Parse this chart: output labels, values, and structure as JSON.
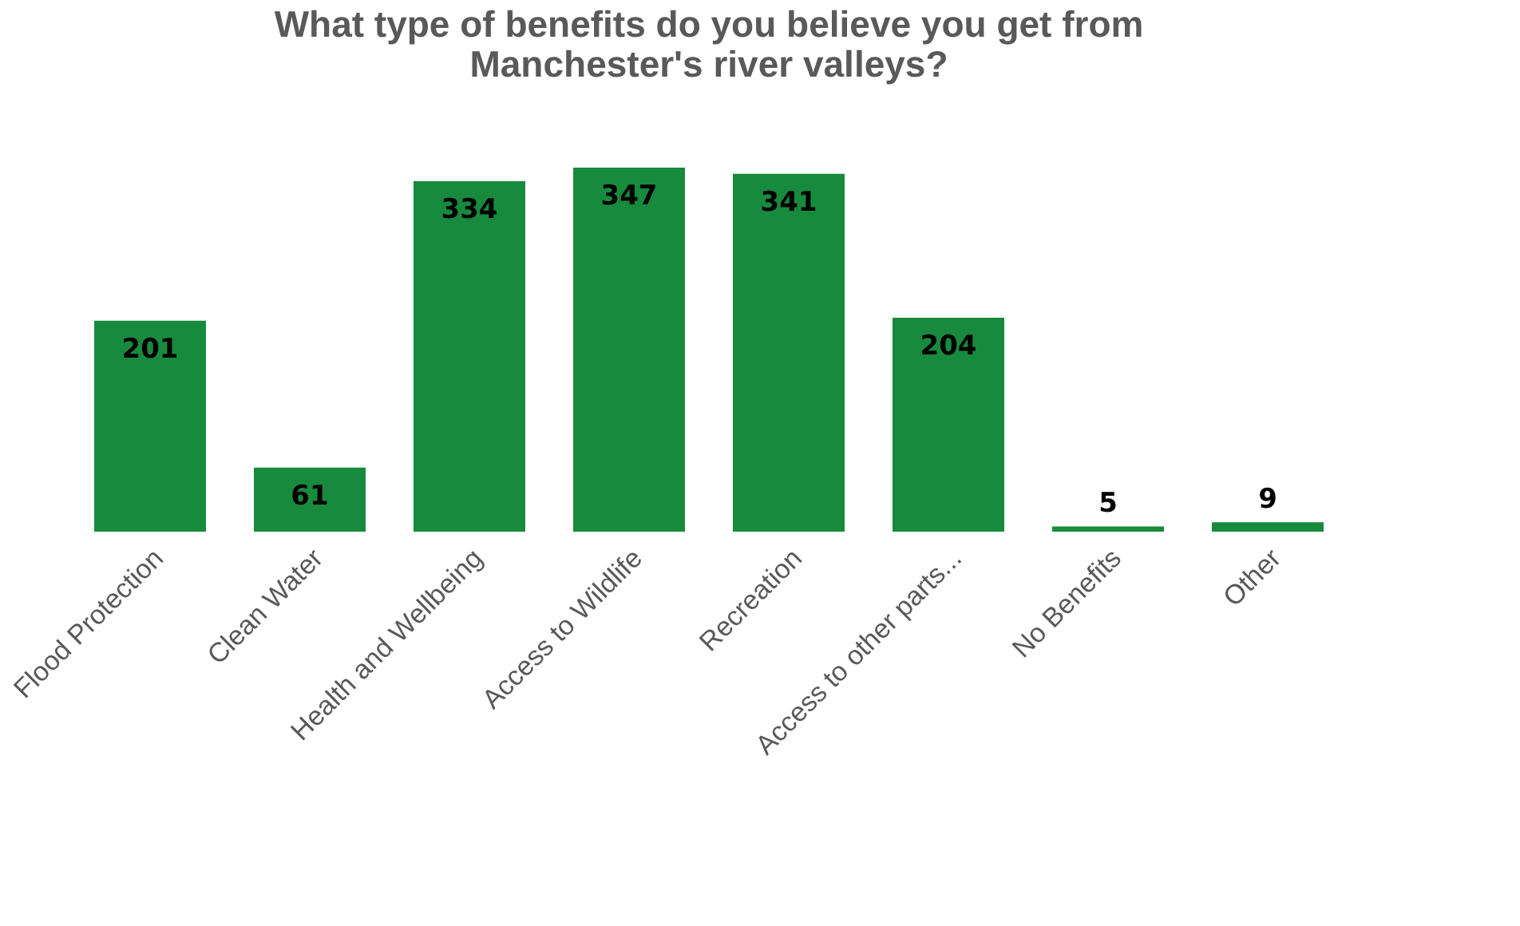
{
  "chart_data": {
    "type": "bar",
    "title": [
      "What type of benefits do you believe you get from",
      "Manchester's river valleys?"
    ],
    "categories": [
      "Flood Protection",
      "Clean Water",
      "Health and Wellbeing",
      "Access to Wildlife",
      "Recreation",
      "Access to other parts...",
      "No Benefits",
      "Other"
    ],
    "values": [
      201,
      61,
      334,
      347,
      341,
      204,
      5,
      9
    ],
    "color": "#178a3e",
    "data_labels": true
  }
}
